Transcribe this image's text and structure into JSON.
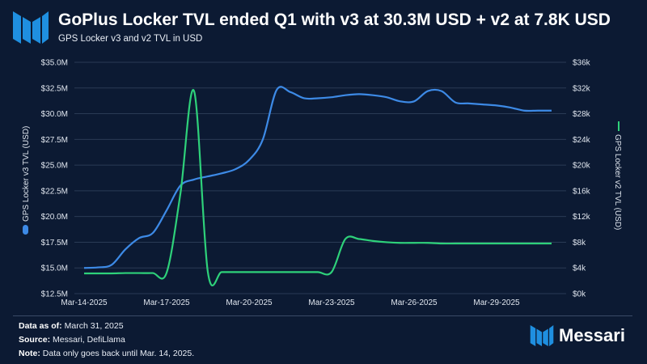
{
  "header": {
    "title": "GoPlus Locker TVL ended Q1 with v3 at 30.3M USD + v2 at 7.8K USD",
    "subtitle": "GPS Locker v3 and v2 TVL in USD"
  },
  "footer": {
    "data_as_of_label": "Data as of:",
    "data_as_of_value": "March 31, 2025",
    "source_label": "Source:",
    "source_value": "Messari, DefiLlama",
    "note_label": "Note:",
    "note_value": "Data only goes back until Mar. 14, 2025.",
    "brand": "Messari"
  },
  "colors": {
    "background": "#0c1a33",
    "v3": "#3d8ae6",
    "v2": "#2ed17a",
    "grid": "#2a3a55",
    "brand": "#1f8fe0"
  },
  "chart_data": {
    "type": "line",
    "title": "GoPlus Locker TVL ended Q1 with v3 at 30.3M USD + v2 at 7.8K USD",
    "subtitle": "GPS Locker v3 and v2 TVL in USD",
    "x": [
      "2025-03-14",
      "2025-03-14.5",
      "2025-03-15",
      "2025-03-15.5",
      "2025-03-16",
      "2025-03-16.5",
      "2025-03-17",
      "2025-03-17.5",
      "2025-03-18",
      "2025-03-18.5",
      "2025-03-19",
      "2025-03-19.5",
      "2025-03-20",
      "2025-03-20.5",
      "2025-03-21",
      "2025-03-21.5",
      "2025-03-22",
      "2025-03-22.5",
      "2025-03-23",
      "2025-03-23.5",
      "2025-03-24",
      "2025-03-24.5",
      "2025-03-25",
      "2025-03-25.5",
      "2025-03-26",
      "2025-03-26.5",
      "2025-03-27",
      "2025-03-27.5",
      "2025-03-28",
      "2025-03-28.5",
      "2025-03-29",
      "2025-03-29.5",
      "2025-03-30",
      "2025-03-30.5",
      "2025-03-31"
    ],
    "x_tick_labels": [
      "Mar-14-2025",
      "Mar-17-2025",
      "Mar-20-2025",
      "Mar-23-2025",
      "Mar-26-2025",
      "Mar-29-2025"
    ],
    "x_tick_days": [
      0,
      3,
      6,
      9,
      12,
      15
    ],
    "x_days": [
      0,
      0.5,
      1,
      1.5,
      2,
      2.5,
      3,
      3.5,
      4,
      4.5,
      5,
      5.5,
      6,
      6.5,
      7,
      7.5,
      8,
      8.5,
      9,
      9.5,
      10,
      10.5,
      11,
      11.5,
      12,
      12.5,
      13,
      13.5,
      14,
      14.5,
      15,
      15.5,
      16,
      16.5,
      17
    ],
    "series": [
      {
        "name": "GPS Locker v3 TVL (USD)",
        "axis": "left",
        "color": "#3d8ae6",
        "values": [
          15.0,
          15.05,
          15.3,
          16.8,
          17.9,
          18.4,
          20.6,
          23.0,
          23.6,
          23.9,
          24.2,
          24.6,
          25.5,
          27.5,
          32.3,
          32.1,
          31.5,
          31.5,
          31.6,
          31.8,
          31.9,
          31.8,
          31.6,
          31.2,
          31.2,
          32.2,
          32.2,
          31.1,
          31.0,
          30.9,
          30.8,
          30.6,
          30.3,
          30.3,
          30.3
        ]
      },
      {
        "name": "GPS Locker v2 TVL (USD)",
        "axis": "right",
        "color": "#2ed17a",
        "values": [
          3150,
          3150,
          3150,
          3200,
          3200,
          3200,
          3250,
          15500,
          31500,
          3350,
          3350,
          3350,
          3350,
          3350,
          3350,
          3350,
          3350,
          3350,
          3350,
          8500,
          8500,
          8200,
          8000,
          7900,
          7900,
          7900,
          7800,
          7800,
          7800,
          7800,
          7800,
          7800,
          7800,
          7800,
          7800
        ]
      }
    ],
    "y_left": {
      "label": "GPS Locker v3 TVL (USD)",
      "min": 12.5,
      "max": 35.0,
      "ticks": [
        12.5,
        15.0,
        17.5,
        20.0,
        22.5,
        25.0,
        27.5,
        30.0,
        32.5,
        35.0
      ],
      "tick_labels": [
        "$12.5M",
        "$15.0M",
        "$17.5M",
        "$20.0M",
        "$22.5M",
        "$25.0M",
        "$27.5M",
        "$30.0M",
        "$32.5M",
        "$35.0M"
      ]
    },
    "y_right": {
      "label": "GPS Locker v2 TVL (USD)",
      "min": 0,
      "max": 36000,
      "ticks": [
        0,
        4000,
        8000,
        12000,
        16000,
        20000,
        24000,
        28000,
        32000,
        36000
      ],
      "tick_labels": [
        "$0k",
        "$4k",
        "$8k",
        "$12k",
        "$16k",
        "$20k",
        "$24k",
        "$28k",
        "$32k",
        "$36k"
      ]
    },
    "grid": true
  }
}
